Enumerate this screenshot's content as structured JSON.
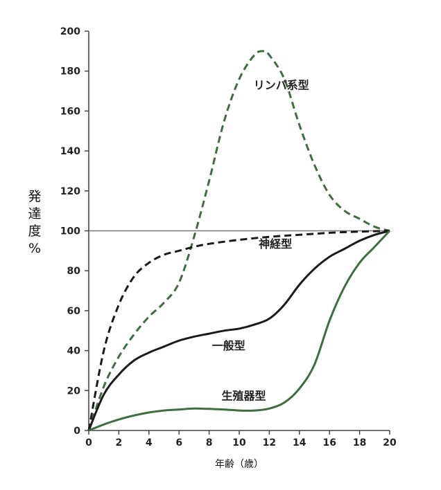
{
  "chart_data": {
    "type": "line",
    "xlabel": "年齢（歳）",
    "ylabel": "発達度%",
    "xlim": [
      0,
      20
    ],
    "ylim": [
      0,
      200
    ],
    "xticks": [
      0,
      2,
      4,
      6,
      8,
      10,
      12,
      14,
      16,
      18,
      20
    ],
    "yticks": [
      0,
      20,
      40,
      60,
      80,
      100,
      120,
      140,
      160,
      180,
      200
    ],
    "reference_line": {
      "y": 100,
      "color": "#777777"
    },
    "series": [
      {
        "name": "リンパ系型",
        "color": "#3d6e3d",
        "dashed": true,
        "label_at": [
          12.8,
          171
        ],
        "points": [
          [
            0,
            0
          ],
          [
            1,
            22
          ],
          [
            2,
            37
          ],
          [
            3,
            48
          ],
          [
            4,
            57
          ],
          [
            5,
            64
          ],
          [
            6,
            74
          ],
          [
            7,
            97
          ],
          [
            8,
            125
          ],
          [
            9,
            155
          ],
          [
            10,
            176
          ],
          [
            11,
            188
          ],
          [
            11.6,
            190
          ],
          [
            12,
            188
          ],
          [
            13,
            176
          ],
          [
            14,
            153
          ],
          [
            15,
            133
          ],
          [
            16,
            118
          ],
          [
            17,
            110
          ],
          [
            18,
            106
          ],
          [
            19,
            102
          ],
          [
            20,
            100
          ]
        ]
      },
      {
        "name": "神経型",
        "color": "#1a1a1a",
        "dashed": true,
        "label_at": [
          12.4,
          91.5
        ],
        "points": [
          [
            0,
            0
          ],
          [
            1,
            40
          ],
          [
            2,
            63
          ],
          [
            3,
            77
          ],
          [
            4,
            84
          ],
          [
            5,
            88
          ],
          [
            6,
            90
          ],
          [
            7,
            92
          ],
          [
            8,
            93.5
          ],
          [
            10,
            95.5
          ],
          [
            12,
            97
          ],
          [
            14,
            98
          ],
          [
            16,
            99
          ],
          [
            18,
            99.6
          ],
          [
            20,
            100
          ]
        ]
      },
      {
        "name": "一般型",
        "color": "#1a1a1a",
        "dashed": false,
        "label_at": [
          9.3,
          40.5
        ],
        "points": [
          [
            0,
            0
          ],
          [
            1,
            18
          ],
          [
            2,
            28
          ],
          [
            3,
            35
          ],
          [
            4,
            39
          ],
          [
            5,
            42
          ],
          [
            6,
            45
          ],
          [
            7,
            47
          ],
          [
            8,
            48.5
          ],
          [
            9,
            50
          ],
          [
            10,
            51
          ],
          [
            11,
            53
          ],
          [
            12,
            56
          ],
          [
            13,
            63
          ],
          [
            14,
            73
          ],
          [
            15,
            81
          ],
          [
            16,
            87
          ],
          [
            17,
            91
          ],
          [
            18,
            95
          ],
          [
            19,
            98
          ],
          [
            20,
            100
          ]
        ]
      },
      {
        "name": "生殖器型",
        "color": "#3d6e3d",
        "dashed": false,
        "label_at": [
          10.3,
          15.5
        ],
        "points": [
          [
            0,
            0
          ],
          [
            1,
            3
          ],
          [
            2,
            5.5
          ],
          [
            3,
            7.5
          ],
          [
            4,
            9
          ],
          [
            5,
            10
          ],
          [
            6,
            10.5
          ],
          [
            7,
            11
          ],
          [
            8,
            10.8
          ],
          [
            9,
            10.5
          ],
          [
            10,
            10
          ],
          [
            11,
            10
          ],
          [
            12,
            11
          ],
          [
            13,
            14
          ],
          [
            14,
            21
          ],
          [
            15,
            33
          ],
          [
            16,
            55
          ],
          [
            17,
            72
          ],
          [
            18,
            84
          ],
          [
            19,
            92
          ],
          [
            20,
            100
          ]
        ]
      }
    ]
  }
}
